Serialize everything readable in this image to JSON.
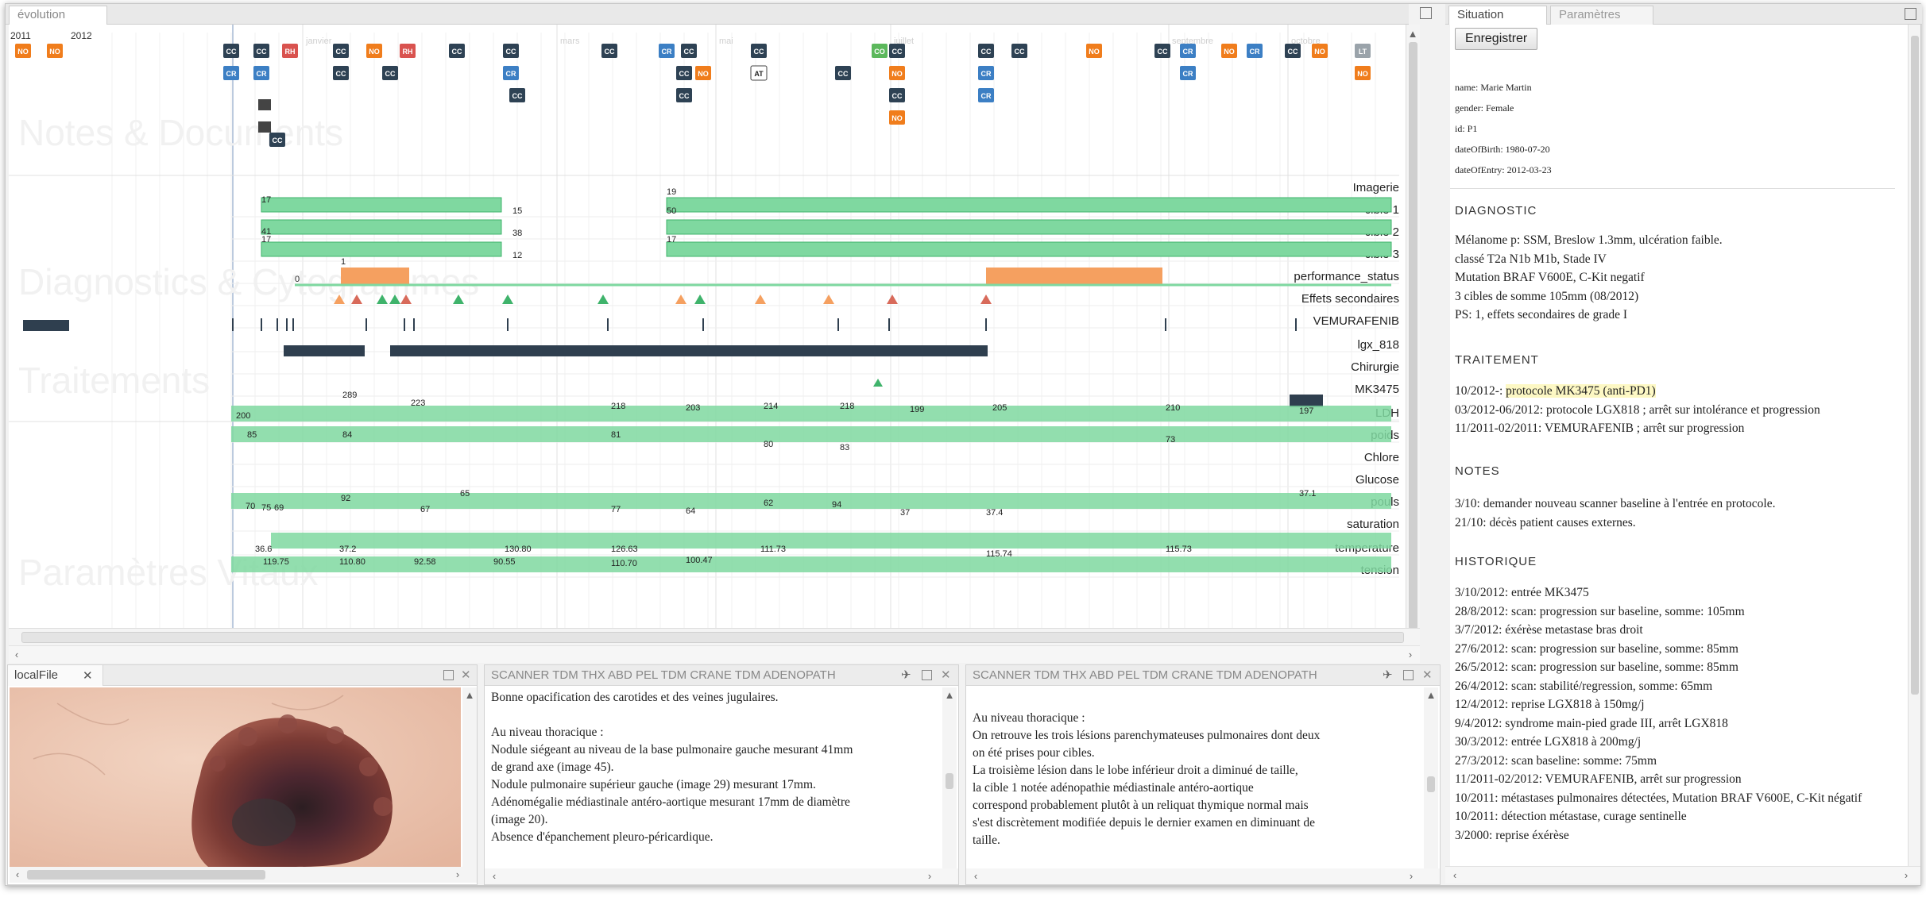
{
  "main_tab": {
    "label": "évolution"
  },
  "side_tabs": [
    {
      "label": "Situation"
    },
    {
      "label": "Paramètres"
    }
  ],
  "save_label": "Enregistrer",
  "patient": {
    "name": "name: Marie Martin",
    "gender": "gender: Female",
    "id": "id: P1",
    "dob": "dateOfBirth: 1980-07-20",
    "doe": "dateOfEntry: 2012-03-23"
  },
  "diagnostic": {
    "title": "DIAGNOSTIC",
    "lines": [
      "Mélanome p: SSM, Breslow 1.3mm, ulcération faible.",
      "classé T2a N1b M1b, Stade IV",
      "Mutation BRAF V600E, C-Kit negatif",
      "3 cibles de somme 105mm (08/2012)",
      "PS: 1, effets secondaires de grade I"
    ]
  },
  "traitement": {
    "title": "TRAITEMENT",
    "line1_prefix": "10/2012-: ",
    "line1_highlight": "protocole MK3475 (anti-PD1)",
    "line2": "03/2012-06/2012: protocole LGX818 ; arrêt sur intolérance et progression",
    "line3": "11/2011-02/2011: VEMURAFENIB ; arrêt sur progression"
  },
  "notes": {
    "title": "NOTES",
    "lines": [
      "3/10: demander nouveau scanner baseline à l'entrée en protocole.",
      "21/10: décès patient causes externes."
    ]
  },
  "historique": {
    "title": "HISTORIQUE",
    "lines": [
      "3/10/2012: entrée MK3475",
      "28/8/2012: scan: progression sur baseline, somme: 105mm",
      "3/7/2012: éxérèse metastase bras droit",
      "27/6/2012: scan: progression sur baseline, somme: 85mm",
      "26/5/2012: scan: progression sur baseline, somme: 85mm",
      "26/4/2012: scan: stabilité/regression, somme: 65mm",
      "12/4/2012: reprise LGX818 à 150mg/j",
      "9/4/2012: syndrome main-pied grade III, arrêt LGX818",
      "30/3/2012: entrée LGX818 à 200mg/j",
      "27/3/2012: scan baseline: somme: 75mm",
      "11/2011-02/2012: VEMURAFENIB, arrêt sur progression",
      "10/2011: métastases pulmonaires détectées, Mutation BRAF V600E, C-Kit négatif",
      "10/2011: détection métastase, curage sentinelle",
      "3/2000: reprise éxérèse"
    ]
  },
  "timeline": {
    "years": [
      "2011",
      "2012"
    ],
    "months": [
      "janvier",
      "mars",
      "mai",
      "juillet",
      "septembre",
      "octobre"
    ],
    "sections": [
      "Notes & Documents",
      "Diagnostics & Cytogrammes",
      "Traitements",
      "Paramètres Vitaux"
    ],
    "rows": [
      "Imagerie",
      "cible 1",
      "cible 2",
      "cible 3",
      "performance_status",
      "Effets secondaires",
      "VEMURAFENIB",
      "lgx_818",
      "Chirurgie",
      "MK3475",
      "LDH",
      "poids",
      "Chlore",
      "Glucose",
      "pouls",
      "saturation",
      "temperature",
      "tension"
    ],
    "colors": {
      "green": "#7fd8a0",
      "green_dark": "#3fb36b",
      "orange": "#f5a060",
      "red": "#d86a5a",
      "dark": "#2f3f4f",
      "note_cc": "#2e4254",
      "note_cr": "#3c7fc4",
      "note_rh": "#d9534f",
      "note_no": "#f07d1c",
      "note_co": "#5cb85c"
    },
    "note_types": [
      "NO",
      "CC",
      "CR",
      "RH",
      "CO",
      "AT",
      "LT"
    ],
    "value_labels": [
      "17",
      "15",
      "50",
      "41",
      "38",
      "17",
      "17",
      "12",
      "19",
      "0",
      "1",
      "200",
      "289",
      "223",
      "218",
      "203",
      "214",
      "218",
      "199",
      "205",
      "210",
      "197",
      "85",
      "84",
      "81",
      "80",
      "83",
      "73",
      "70",
      "75",
      "69",
      "92",
      "67",
      "65",
      "77",
      "64",
      "62",
      "94",
      "37",
      "37.4",
      "37.1",
      "36.6",
      "37.2",
      "130.80",
      "126.63",
      "111.73",
      "115.74",
      "115.73",
      "119.75",
      "110.80",
      "92.58",
      "90.55",
      "110.70",
      "100.47"
    ]
  },
  "image_panel": {
    "title": "localFile"
  },
  "doc1": {
    "title": "SCANNER TDM THX ABD PEL TDM CRANE TDM ADENOPATH",
    "lines": [
      "Bonne opacification des carotides et des veines jugulaires.",
      "",
      "Au niveau thoracique :",
      "Nodule siégeant au niveau de la base pulmonaire gauche mesurant 41mm",
      "de grand axe (image 45).",
      "Nodule pulmonaire supérieur gauche (image 29) mesurant 17mm.",
      "Adénomégalie médiastinale antéro-aortique mesurant 17mm de diamètre",
      "(image 20).",
      "Absence d'épanchement pleuro-péricardique."
    ]
  },
  "doc2": {
    "title": "SCANNER TDM THX ABD PEL TDM CRANE TDM ADENOPATH",
    "lines": [
      "Au niveau thoracique :",
      "On retrouve les trois lésions parenchymateuses pulmonaires dont deux",
      "on été prises pour cibles.",
      "La troisième lésion dans le lobe inférieur droit a diminué de taille,",
      "la cible 1 notée adénopathie médiastinale antéro-aortique",
      "correspond probablement plutôt à un reliquat thymique normal mais",
      "s'est discrètement modifiée depuis le dernier examen en diminuant de",
      "taille."
    ]
  }
}
